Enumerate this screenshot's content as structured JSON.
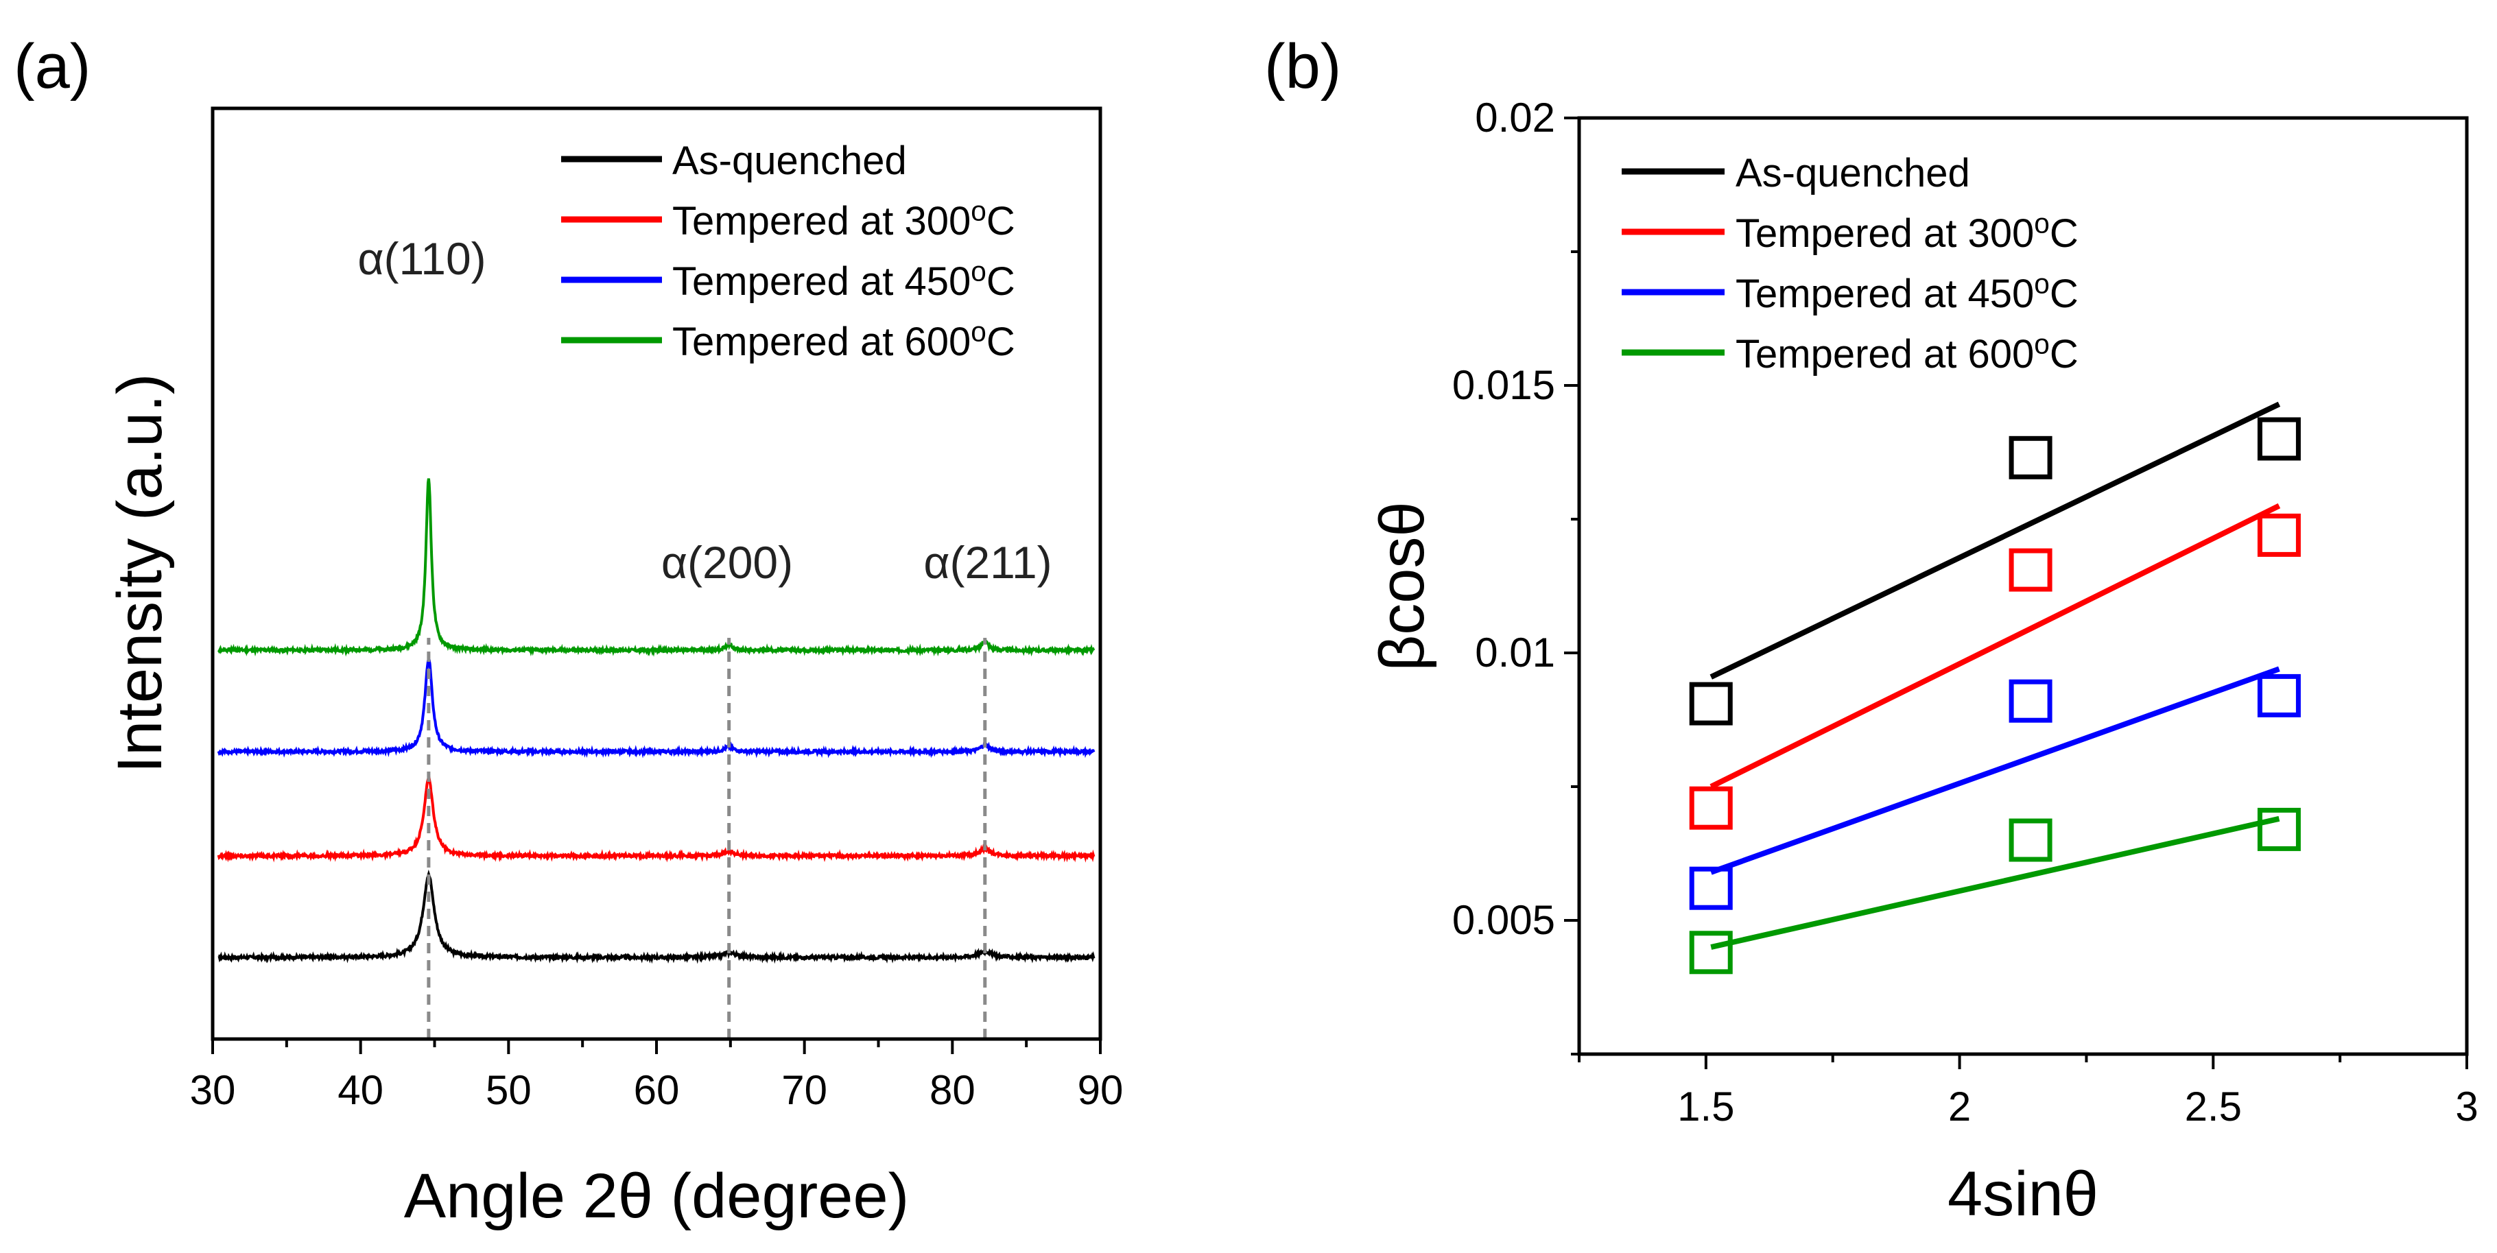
{
  "panel_a": {
    "label": "(a)"
  },
  "panel_b": {
    "label": "(b)"
  },
  "chart_data": [
    {
      "type": "line",
      "panel": "(a)",
      "xlabel": "Angle 2θ (degree)",
      "ylabel": "Intensity (a.u.)",
      "xlim": [
        30,
        90
      ],
      "xticks": [
        "30",
        "40",
        "50",
        "60",
        "70",
        "80",
        "90"
      ],
      "peaks": [
        {
          "label": "α(110)",
          "x": 44.6
        },
        {
          "label": "α(200)",
          "x": 64.9
        },
        {
          "label": "α(211)",
          "x": 82.2
        }
      ],
      "series": [
        {
          "name": "As-quenched",
          "color": "#000000",
          "baseline": 0,
          "peak_heights": [
            3.0,
            0.18,
            0.22
          ],
          "peak_width": 0.45
        },
        {
          "name": "Tempered at 300",
          "color": "#ff0000",
          "baseline": 1,
          "peak_heights": [
            2.8,
            0.17,
            0.25
          ],
          "peak_width": 0.38
        },
        {
          "name": "Tempered at 450",
          "color": "#0000ff",
          "baseline": 2,
          "peak_heights": [
            3.4,
            0.18,
            0.25
          ],
          "peak_width": 0.3
        },
        {
          "name": "Tempered at 600",
          "color": "#009900",
          "baseline": 3,
          "peak_heights": [
            6.3,
            0.22,
            0.35
          ],
          "peak_width": 0.22
        }
      ],
      "legend_superscript": "o",
      "legend_unit": "C"
    },
    {
      "type": "scatter",
      "panel": "(b)",
      "xlabel": "4sinθ",
      "ylabel": "βcosθ",
      "xlim": [
        1.25,
        3.0
      ],
      "ylim": [
        0.0025,
        0.02
      ],
      "xticks": [
        "1.5",
        "2",
        "2.5",
        "3"
      ],
      "yticks": [
        "0.005",
        "0.01",
        "0.015",
        "0.02"
      ],
      "x": [
        1.51,
        2.14,
        2.63
      ],
      "series": [
        {
          "name": "As-quenched",
          "color": "#000000",
          "values": [
            0.00905,
            0.01365,
            0.014
          ],
          "fit": [
            0.00955,
            0.01465
          ]
        },
        {
          "name": "Tempered at 300",
          "color": "#ff0000",
          "values": [
            0.0071,
            0.01155,
            0.0122
          ],
          "fit": [
            0.0075,
            0.01275
          ]
        },
        {
          "name": "Tempered at 450",
          "color": "#0000ff",
          "values": [
            0.0056,
            0.0091,
            0.0092
          ],
          "fit": [
            0.0059,
            0.0097
          ]
        },
        {
          "name": "Tempered at 600",
          "color": "#009900",
          "values": [
            0.0044,
            0.0065,
            0.0067
          ],
          "fit": [
            0.0045,
            0.0069
          ]
        }
      ],
      "legend_superscript": "o",
      "legend_unit": "C"
    }
  ]
}
